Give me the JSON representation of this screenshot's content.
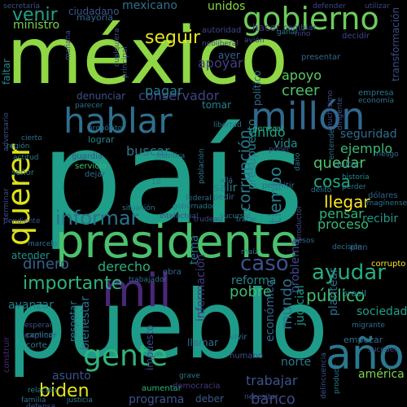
{
  "words": [
    {
      "text": "méxico",
      "color": "#8fd744"
    },
    {
      "text": "país",
      "color": "#1f9e89"
    },
    {
      "text": "pueblo",
      "color": "#1e9c89"
    },
    {
      "text": "presidente",
      "color": "#4ac16d"
    },
    {
      "text": "gobierno",
      "color": "#6ccd5a"
    },
    {
      "text": "hablar",
      "color": "#2d708e"
    },
    {
      "text": "millón",
      "color": "#31688e"
    },
    {
      "text": "querer",
      "color": "#dde318"
    },
    {
      "text": "mil",
      "color": "#482878"
    },
    {
      "text": "año",
      "color": "#2a788e"
    },
    {
      "text": "gente",
      "color": "#2fb47c"
    },
    {
      "text": "informar",
      "color": "#2c728e"
    },
    {
      "text": "caso",
      "color": "#3b528b"
    },
    {
      "text": "ayudar",
      "color": "#27ad81"
    },
    {
      "text": "seguir",
      "color": "#e5e419"
    },
    {
      "text": "venir",
      "color": "#20a386"
    },
    {
      "text": "tiempo",
      "color": "#26828e"
    },
    {
      "text": "importante",
      "color": "#2db27d"
    },
    {
      "text": "llegar",
      "color": "#fde725"
    },
    {
      "text": "corrupción",
      "color": "#2a788e"
    },
    {
      "text": "biden",
      "color": "#e2e418"
    },
    {
      "text": "unido",
      "color": "#1fa187"
    },
    {
      "text": "cosa",
      "color": "#22a884"
    },
    {
      "text": "quedar",
      "color": "#52c569"
    },
    {
      "text": "ejemplo",
      "color": "#38b977"
    },
    {
      "text": "conservador",
      "color": "#414487"
    },
    {
      "text": "dinero",
      "color": "#34618d"
    },
    {
      "text": "derecho",
      "color": "#2ab07f"
    },
    {
      "text": "pobre",
      "color": "#3bbb75"
    },
    {
      "text": "reforma",
      "color": "#23888e"
    },
    {
      "text": "tema",
      "color": "#2c728e"
    },
    {
      "text": "público",
      "color": "#43bf71"
    },
    {
      "text": "mundo",
      "color": "#2e6f8e"
    },
    {
      "text": "banco",
      "color": "#3e4a89"
    },
    {
      "text": "trabajar",
      "color": "#3a548c"
    },
    {
      "text": "sociedad",
      "color": "#1fa088"
    },
    {
      "text": "apoyo",
      "color": "#5ec962"
    },
    {
      "text": "creer",
      "color": "#4cc26c"
    },
    {
      "text": "apoyar",
      "color": "#423f85"
    },
    {
      "text": "pagar",
      "color": "#287c8e"
    },
    {
      "text": "buscar",
      "color": "#2a788e"
    },
    {
      "text": "pensar",
      "color": "#31b57b"
    },
    {
      "text": "proceso",
      "color": "#35b779"
    },
    {
      "text": "recibir",
      "color": "#1e9b8a"
    },
    {
      "text": "seguridad",
      "color": "#2e6e8e"
    },
    {
      "text": "vida",
      "color": "#21918c"
    },
    {
      "text": "presupuesto",
      "color": "#26828e"
    },
    {
      "text": "atender",
      "color": "#21918c"
    },
    {
      "text": "avanzar",
      "color": "#287d8e"
    },
    {
      "text": "hacer",
      "color": "#46327e"
    },
    {
      "text": "político",
      "color": "#2e6e8e"
    },
    {
      "text": "tomar",
      "color": "#25848e"
    },
    {
      "text": "problema",
      "color": "#3e4c8a"
    },
    {
      "text": "judicial",
      "color": "#1e9b8a"
    },
    {
      "text": "plantear",
      "color": "#2c738e"
    },
    {
      "text": "económico",
      "color": "#32658e"
    },
    {
      "text": "información",
      "color": "#443a83"
    },
    {
      "text": "bienestar",
      "color": "#2c728e"
    },
    {
      "text": "impuesto",
      "color": "#3e4a89"
    },
    {
      "text": "asunto",
      "color": "#3b528b"
    },
    {
      "text": "mexicano",
      "color": "#2c728e"
    },
    {
      "text": "unidos",
      "color": "#8fd744"
    },
    {
      "text": "ministro",
      "color": "#7ad151"
    },
    {
      "text": "faltar",
      "color": "#24868e"
    },
    {
      "text": "ayer",
      "color": "#33628d"
    },
    {
      "text": "transformación",
      "color": "#3c4f8a"
    },
    {
      "text": "américa",
      "color": "#7fd34e"
    },
    {
      "text": "norte",
      "color": "#2a778e"
    },
    {
      "text": "programa",
      "color": "#3b528b"
    },
    {
      "text": "deber",
      "color": "#365c8d"
    },
    {
      "text": "ciudadano",
      "color": "#39568c"
    },
    {
      "text": "mayoría",
      "color": "#31688e"
    },
    {
      "text": "autoridad",
      "color": "#3f4788"
    },
    {
      "text": "general",
      "color": "#2ab07f"
    },
    {
      "text": "quitar",
      "color": "#2d708e"
    },
    {
      "text": "lograr",
      "color": "#26828e"
    },
    {
      "text": "guardia",
      "color": "#3a538b"
    },
    {
      "text": "servicio",
      "color": "#3dbc74"
    },
    {
      "text": "dejar",
      "color": "#2f6c8e"
    },
    {
      "text": "salir",
      "color": "#27808e"
    },
    {
      "text": "pedir",
      "color": "#2e6e8e"
    },
    {
      "text": "llamar",
      "color": "#2c728e"
    },
    {
      "text": "empresa",
      "color": "#2a788e"
    },
    {
      "text": "economía",
      "color": "#2c728e"
    },
    {
      "text": "brasil",
      "color": "#23888e"
    },
    {
      "text": "empezar",
      "color": "#2e6e8e"
    },
    {
      "text": "aumentar",
      "color": "#2db27d"
    },
    {
      "text": "democracia",
      "color": "#443983"
    },
    {
      "text": "permitir",
      "color": "#2e6e8e"
    },
    {
      "text": "presentar",
      "color": "#31688e"
    },
    {
      "text": "respetar",
      "color": "#2a788e"
    },
    {
      "text": "explicar",
      "color": "#3b528b"
    },
    {
      "text": "construir",
      "color": "#482878"
    },
    {
      "text": "cambiar",
      "color": "#3e4a89"
    },
    {
      "text": "decidir",
      "color": "#3e4989"
    },
    {
      "text": "defender",
      "color": "#3e4989"
    },
    {
      "text": "utilizar",
      "color": "#3e4989"
    },
    {
      "text": "secretaría",
      "color": "#3b528b"
    },
    {
      "text": "dólares",
      "color": "#33638d"
    },
    {
      "text": "riesgo",
      "color": "#2c728e"
    },
    {
      "text": "historia",
      "color": "#23888e"
    },
    {
      "text": "mentira",
      "color": "#2f6c8e"
    },
    {
      "text": "pesos",
      "color": "#31688e"
    },
    {
      "text": "corrupto",
      "color": "#fde725"
    },
    {
      "text": "plan",
      "color": "#34618d"
    },
    {
      "text": "decisión",
      "color": "#2c728e"
    },
    {
      "text": "humano",
      "color": "#3b528b"
    },
    {
      "text": "obra",
      "color": "#31688e"
    },
    {
      "text": "trabajador",
      "color": "#2e6e8e"
    },
    {
      "text": "vivir",
      "color": "#2c728e"
    },
    {
      "text": "suceder",
      "color": "#3b528b"
    },
    {
      "text": "familia",
      "color": "#2c728e"
    },
    {
      "text": "relación",
      "color": "#26828e"
    },
    {
      "text": "justicia",
      "color": "#2a788e"
    },
    {
      "text": "defensa",
      "color": "#3b528b"
    },
    {
      "text": "producir",
      "color": "#2a788e"
    },
    {
      "text": "marcelo",
      "color": "#2c728e"
    },
    {
      "text": "pendiente",
      "color": "#3b528b"
    },
    {
      "text": "actitud",
      "color": "#2a788e"
    },
    {
      "text": "señor",
      "color": "#2a788e"
    },
    {
      "text": "adversario",
      "color": "#3b528b"
    },
    {
      "text": "cierto",
      "color": "#2c728e"
    },
    {
      "text": "región",
      "color": "#2a788e"
    },
    {
      "text": "propósito",
      "color": "#2c728e"
    },
    {
      "text": "terminar",
      "color": "#3e4a89"
    },
    {
      "text": "esperar",
      "color": "#3b528b"
    },
    {
      "text": "corte",
      "color": "#2a788e"
    },
    {
      "text": "camino",
      "color": "#2c728e"
    },
    {
      "text": "mañana",
      "color": "#3e4a89"
    },
    {
      "text": "principal",
      "color": "#3b528b"
    },
    {
      "text": "parecer",
      "color": "#2c728e"
    },
    {
      "text": "neoliberal",
      "color": "#3e4989"
    },
    {
      "text": "avión",
      "color": "#3b528b"
    },
    {
      "text": "ganar",
      "color": "#2a788e"
    },
    {
      "text": "niño",
      "color": "#3e4a89"
    },
    {
      "text": "cualquiera",
      "color": "#3b528b"
    },
    {
      "text": "libertad",
      "color": "#2c728e"
    },
    {
      "text": "muchísimo",
      "color": "#3e4a89"
    },
    {
      "text": "dirigente",
      "color": "#3b528b"
    },
    {
      "text": "entender",
      "color": "#2c728e"
    },
    {
      "text": "grave",
      "color": "#2a788e"
    },
    {
      "text": "necesitar",
      "color": "#3b528b"
    },
    {
      "text": "poner",
      "color": "#3e4a89"
    },
    {
      "text": "delincuencia",
      "color": "#3b528b"
    },
    {
      "text": "migrante",
      "color": "#2c728e"
    },
    {
      "text": "gobernador",
      "color": "#2a788e"
    },
    {
      "text": "federal",
      "color": "#2e6e8e"
    },
    {
      "text": "situación",
      "color": "#2a788e"
    },
    {
      "text": "intelectual",
      "color": "#3b528b"
    },
    {
      "text": "trudeau",
      "color": "#3e4a89"
    },
    {
      "text": "sucursal",
      "color": "#2c728e"
    },
    {
      "text": "tratar",
      "color": "#2a788e"
    },
    {
      "text": "perder",
      "color": "#2a788e"
    },
    {
      "text": "imagínense",
      "color": "#2c728e"
    },
    {
      "text": "maíz",
      "color": "#2a788e"
    },
    {
      "text": "productor",
      "color": "#3e4a89"
    },
    {
      "text": "denunciar",
      "color": "#3b528b"
    },
    {
      "text": "10",
      "color": "#2a788e"
    },
    {
      "text": "allá",
      "color": "#2c728e"
    },
    {
      "text": "delito",
      "color": "#2a788e"
    },
    {
      "text": "daño",
      "color": "#2c728e"
    },
    {
      "text": "población",
      "color": "#2a788e"
    },
    {
      "text": "garantizar",
      "color": "#3b528b"
    }
  ]
}
